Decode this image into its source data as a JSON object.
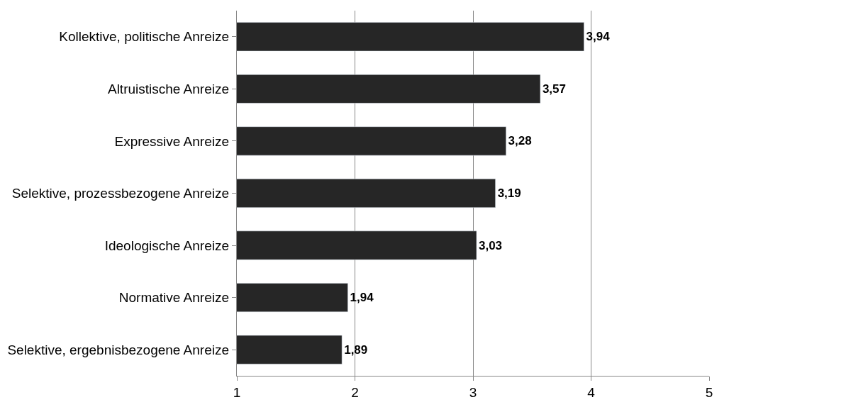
{
  "chart_data": {
    "type": "bar",
    "orientation": "horizontal",
    "categories": [
      "Kollektive, politische Anreize",
      "Altruistische Anreize",
      "Expressive Anreize",
      "Selektive, prozessbezogene Anreize",
      "Ideologische Anreize",
      "Normative Anreize",
      "Selektive, ergebnisbezogene Anreize"
    ],
    "values": [
      3.94,
      3.57,
      3.28,
      3.19,
      3.03,
      1.94,
      1.89
    ],
    "value_labels": [
      "3,94",
      "3,57",
      "3,28",
      "3,19",
      "3,03",
      "1,94",
      "1,89"
    ],
    "color": "#262626",
    "xlim": [
      1,
      5
    ],
    "xticks": [
      1,
      2,
      3,
      4,
      5
    ],
    "grid": "x",
    "legend": false
  }
}
